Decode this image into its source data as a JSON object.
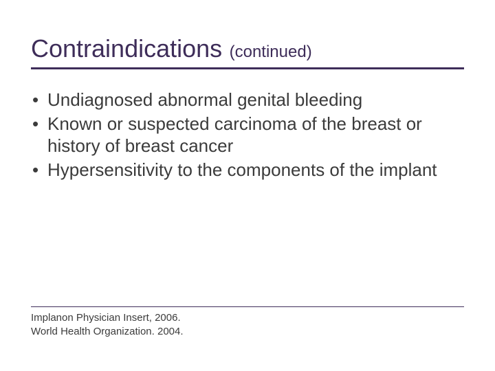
{
  "colors": {
    "title": "#3e2d59",
    "title_sub": "#3e2d59",
    "underline": "#3e2d59",
    "body_text": "#3b3b3b",
    "bullet": "#3b3b3b",
    "footer_rule": "#3e2d59",
    "footer_text": "#3b3b3b",
    "background": "#ffffff"
  },
  "typography": {
    "title_fontsize": 36,
    "subtitle_fontsize": 24,
    "body_fontsize": 26,
    "footer_fontsize": 15,
    "font_family": "Arial"
  },
  "title": {
    "main": "Contraindications",
    "sub": "(continued)"
  },
  "bullets": [
    "Undiagnosed abnormal genital bleeding",
    "Known or suspected carcinoma of the breast or history of breast cancer",
    "Hypersensitivity to the components of the implant"
  ],
  "footer_lines": [
    "Implanon Physician Insert, 2006.",
    "World Health Organization. 2004."
  ]
}
